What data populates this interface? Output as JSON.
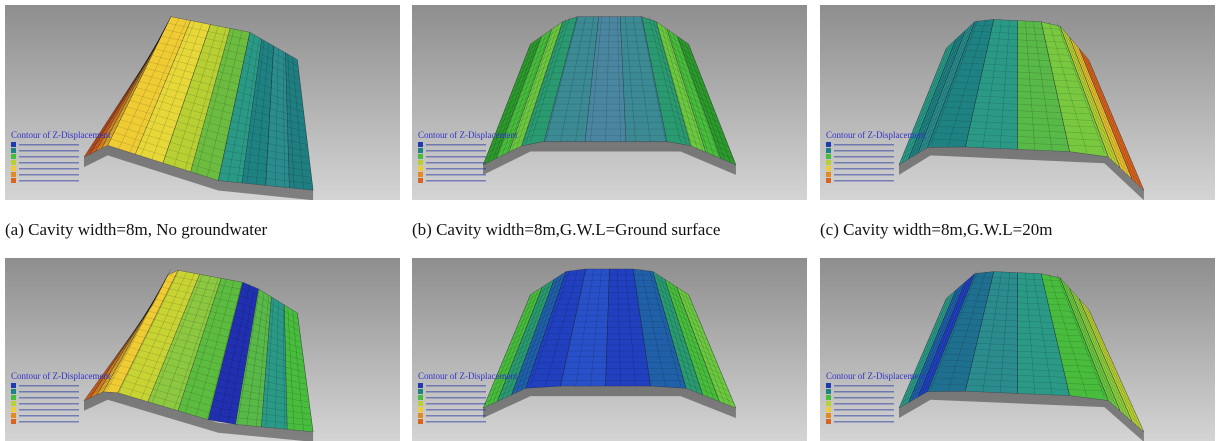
{
  "panels": [
    {
      "legend_title": "Contour of Z-Displacement",
      "caption": "(a) Cavity width=8m, No groundwater"
    },
    {
      "legend_title": "Contour of Z-Displacement",
      "caption": "(b) Cavity width=8m,G.W.L=Ground surface"
    },
    {
      "legend_title": "Contour of Z-Displacement",
      "caption": "(c) Cavity width=8m,G.W.L=20m"
    },
    {
      "legend_title": "Contour of Z-Displacement"
    },
    {
      "legend_title": "Contour of Z-Displacement"
    },
    {
      "legend_title": "Contour of Z-Displacement"
    }
  ]
}
